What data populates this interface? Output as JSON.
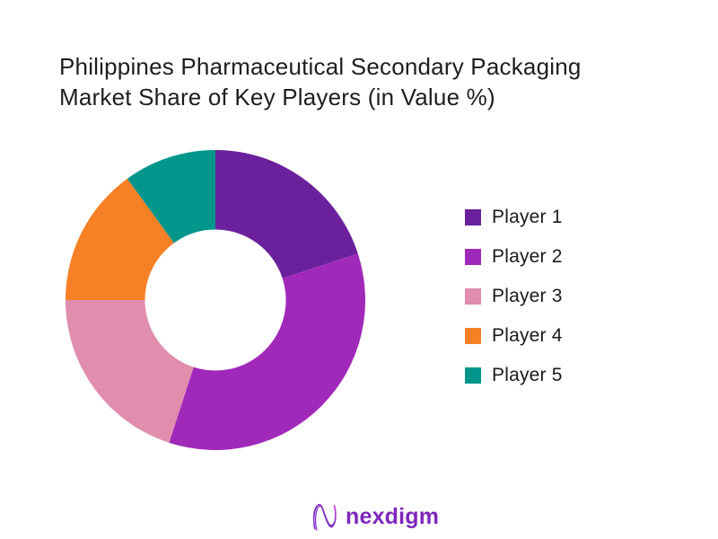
{
  "title": {
    "line1": "Philippines Pharmaceutical Secondary Packaging",
    "line2": "Market Share of Key Players (in Value %)"
  },
  "chart_data": {
    "type": "pie",
    "subtype": "donut",
    "title": "Philippines Pharmaceutical Secondary Packaging Market Share of Key Players (in Value %)",
    "categories": [
      "Player 1",
      "Player 2",
      "Player 3",
      "Player 4",
      "Player 5"
    ],
    "values": [
      20,
      35,
      20,
      15,
      10
    ],
    "unit": "percent of value share (estimated from arc angles; no data labels shown)",
    "colors": [
      "#6A219B",
      "#A129B9",
      "#E08DAE",
      "#F58025",
      "#00968C"
    ],
    "start_angle_deg": 0,
    "direction": "clockwise",
    "inner_radius_ratio": 0.47,
    "legend_position": "right",
    "data_labels": false,
    "background": "#ffffff"
  },
  "legend": {
    "items": [
      {
        "label": "Player 1",
        "color": "#6A219B"
      },
      {
        "label": "Player 2",
        "color": "#A129B9"
      },
      {
        "label": "Player 3",
        "color": "#E08DAE"
      },
      {
        "label": "Player 4",
        "color": "#F58025"
      },
      {
        "label": "Player 5",
        "color": "#00968C"
      }
    ]
  },
  "footer": {
    "brand": "nexdigm",
    "brand_color": "#7D26BC",
    "icon": "nexdigm-wave-n-logo",
    "icon_gradient": [
      "#9B59D0",
      "#7B2FBE",
      "#C13BD8"
    ]
  }
}
